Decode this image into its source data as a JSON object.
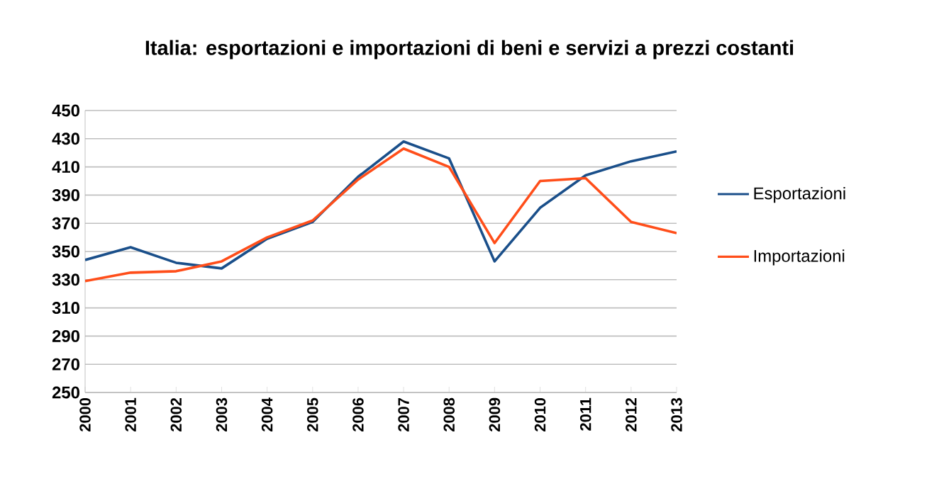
{
  "chart_data": {
    "type": "line",
    "title": "Italia: esportazioni e importazioni di beni e servizi a prezzi costanti",
    "categories": [
      "2000",
      "2001",
      "2002",
      "2003",
      "2004",
      "2005",
      "2006",
      "2007",
      "2008",
      "2009",
      "2010",
      "2011",
      "2012",
      "2013"
    ],
    "series": [
      {
        "name": "Esportazioni",
        "color": "#1a4f8a",
        "values": [
          344,
          353,
          342,
          338,
          359,
          371,
          403,
          428,
          416,
          343,
          381,
          404,
          414,
          421
        ]
      },
      {
        "name": "Importazioni",
        "color": "#ff4e1a",
        "values": [
          329,
          335,
          336,
          343,
          360,
          372,
          401,
          423,
          410,
          356,
          400,
          402,
          371,
          363
        ]
      }
    ],
    "ylim": [
      250,
      450
    ],
    "yticks": [
      250,
      270,
      290,
      310,
      330,
      350,
      370,
      390,
      410,
      430,
      450
    ],
    "grid": "y",
    "legend": "right",
    "marker": "none",
    "line_style": "solid"
  }
}
